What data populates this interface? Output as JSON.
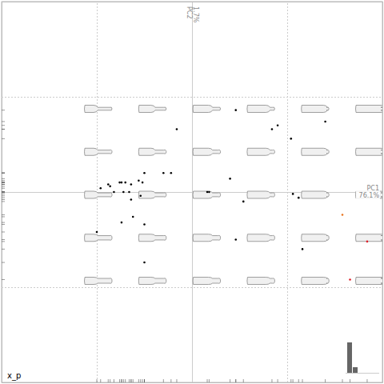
{
  "chart_data": {
    "type": "scatter",
    "annotation": "x_p",
    "xlabel": [
      "PC1",
      "76.1%"
    ],
    "ylabel": [
      "PC2",
      "1.7%"
    ],
    "x": [
      -0.08,
      0.23,
      0.42,
      0.45,
      0.52,
      0.7,
      -0.48,
      -0.44,
      -0.43,
      -0.38,
      -0.37,
      -0.35,
      -0.32,
      -0.28,
      -0.26,
      -0.25,
      -0.15,
      -0.11,
      -0.36,
      -0.33,
      -0.41,
      -0.27,
      -0.32,
      0.08,
      0.09,
      0.2,
      0.27,
      0.53,
      0.56,
      -0.5,
      -0.37,
      -0.31,
      -0.25,
      0.23,
      0.58,
      -0.25,
      0.79,
      0.92,
      0.83
    ],
    "values": [
      0.33,
      0.43,
      0.33,
      0.35,
      0.28,
      0.37,
      0.02,
      0.04,
      0.03,
      0.05,
      0.05,
      0.05,
      0.04,
      0.06,
      0.05,
      0.1,
      0.1,
      0.1,
      0.0,
      0.0,
      -0.0,
      -0.02,
      -0.04,
      0.0,
      0.0,
      0.07,
      -0.05,
      -0.01,
      -0.03,
      -0.21,
      -0.16,
      -0.13,
      -0.17,
      -0.25,
      -0.3,
      -0.37,
      -0.12,
      -0.26,
      -0.46
    ],
    "colors": [
      "#000000",
      "#000000",
      "#000000",
      "#000000",
      "#000000",
      "#000000",
      "#000000",
      "#000000",
      "#000000",
      "#000000",
      "#000000",
      "#000000",
      "#000000",
      "#000000",
      "#000000",
      "#000000",
      "#000000",
      "#000000",
      "#000000",
      "#000000",
      "#000000",
      "#000000",
      "#000000",
      "#000000",
      "#000000",
      "#000000",
      "#000000",
      "#000000",
      "#000000",
      "#000000",
      "#000000",
      "#000000",
      "#000000",
      "#000000",
      "#000000",
      "#000000",
      "#e8731c",
      "#e0202a",
      "#e0202a"
    ],
    "xlim": [
      -1,
      1
    ],
    "ylim": [
      -1,
      1
    ],
    "xticks": [
      -0.5,
      0,
      0.5
    ],
    "yticks": [
      -0.5,
      0,
      0.5
    ],
    "grid": true,
    "tick_labels": false,
    "scree_values": [
      38,
      7
    ],
    "scree_lim": [
      0,
      40
    ]
  }
}
